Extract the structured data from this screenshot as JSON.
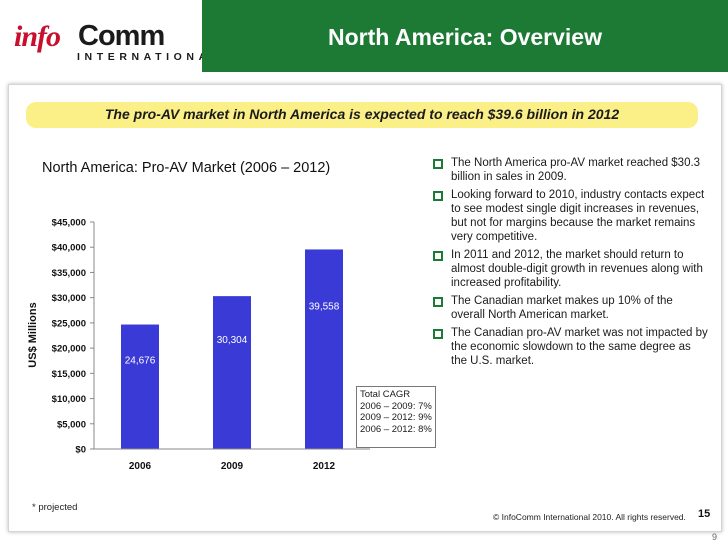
{
  "header": {
    "logo_info": "info",
    "logo_comm": "Comm",
    "logo_international": "INTERNATIONAL®",
    "title": "North America: Overview",
    "brand_green": "#1d7a34",
    "brand_red": "#c8102e"
  },
  "banner": {
    "text": "The pro-AV market in North America is expected to reach $39.6 billion in 2012",
    "color": "#fbef87"
  },
  "chart_data": {
    "type": "bar",
    "title": "North America: Pro-AV Market (2006 – 2012)",
    "categories": [
      "2006",
      "2009",
      "2012"
    ],
    "values": [
      24676,
      30304,
      39558
    ],
    "data_labels": [
      "24,676",
      "30,304",
      "39,558"
    ],
    "ylabel": "US$ Millions",
    "xlabel": "",
    "ylim": [
      0,
      45000
    ],
    "y_ticks": [
      0,
      5000,
      10000,
      15000,
      20000,
      25000,
      30000,
      35000,
      40000,
      45000
    ],
    "y_tick_labels": [
      "$0",
      "$5,000",
      "$10,000",
      "$15,000",
      "$20,000",
      "$25,000",
      "$30,000",
      "$35,000",
      "$40,000",
      "$45,000"
    ],
    "bar_color": "#3a3ad6",
    "grid": false,
    "legend": "none"
  },
  "cagr": {
    "title": "Total CAGR",
    "lines": [
      "2006 – 2009: 7%",
      "2009 – 2012: 9%",
      "2006 – 2012: 8%"
    ]
  },
  "bullets": [
    "The North America pro-AV market reached $30.3 billion in sales in 2009.",
    "Looking forward to 2010, industry contacts expect to see modest single digit increases in revenues, but not for margins because the market remains very competitive.",
    "In 2011 and 2012, the market should return to almost double-digit growth in revenues along with increased profitability.",
    "The Canadian market makes up 10% of the overall North American market.",
    "The Canadian pro-AV market was not impacted by the economic slowdown to the same degree as the U.S. market."
  ],
  "footer": {
    "footnote": "* projected",
    "copyright": "© InfoComm International 2010. All rights reserved.",
    "slide_number": "15",
    "page_number": "9"
  }
}
